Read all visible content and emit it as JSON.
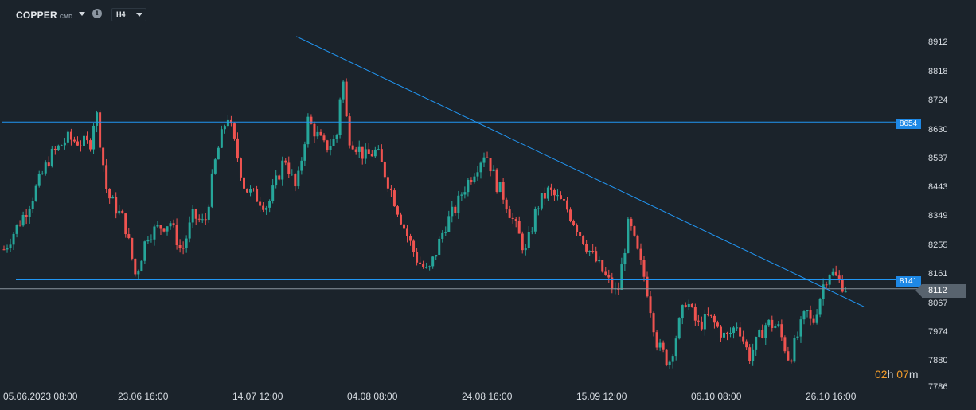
{
  "toolbar": {
    "symbol": "COPPER",
    "symbol_type": "CMD",
    "info_glyph": "i",
    "timeframe": "H4"
  },
  "price_axis": {
    "ticks": [
      "8912",
      "8818",
      "8724",
      "8630",
      "8537",
      "8443",
      "8349",
      "8255",
      "8161",
      "8067",
      "7974",
      "7880",
      "7786"
    ]
  },
  "time_axis": {
    "ticks": [
      "05.06.2023  08:00",
      "23.06  16:00",
      "14.07  12:00",
      "04.08  08:00",
      "24.08  16:00",
      "15.09  12:00",
      "06.10  08:00",
      "26.10  16:00"
    ]
  },
  "levels": {
    "resistance_label": "8654",
    "support_label": "8141",
    "current_price_label": "8112"
  },
  "timer": {
    "hours": "02",
    "hours_unit": "h",
    "minutes": "07",
    "minutes_unit": "m"
  },
  "colors": {
    "background": "#1b232b",
    "up_candle": "#26a69a",
    "down_candle": "#ef5350",
    "line": "#2196f3",
    "level_tag": "#1e88e5",
    "price_tag": "#58636e",
    "timer_accent": "#f39c2a"
  },
  "chart_data": {
    "type": "candlestick",
    "symbol": "COPPER",
    "timeframe": "H4",
    "y_ticks": [
      8912,
      8818,
      8724,
      8630,
      8537,
      8443,
      8349,
      8255,
      8161,
      8067,
      7974,
      7880,
      7786
    ],
    "ylim": [
      7786,
      8912
    ],
    "x_ticks": [
      "05.06.2023 08:00",
      "23.06 16:00",
      "14.07 12:00",
      "04.08 08:00",
      "24.08 16:00",
      "15.09 12:00",
      "06.10 08:00",
      "26.10 16:00"
    ],
    "horizontal_levels": [
      {
        "value": 8654,
        "label": "8654"
      },
      {
        "value": 8141,
        "label": "8141"
      }
    ],
    "current_price": 8112,
    "trendline": {
      "start": {
        "date": "26.07",
        "price": 8932
      },
      "end": {
        "date": "02.11",
        "price": 8054
      }
    },
    "anchors": [
      {
        "x": "05.06.2023 08:00",
        "close": 8240
      },
      {
        "x": "09.06",
        "close": 8370
      },
      {
        "x": "13.06",
        "close": 8540
      },
      {
        "x": "16.06",
        "close": 8600
      },
      {
        "x": "20.06",
        "close": 8580
      },
      {
        "x": "21.06",
        "close": 8700
      },
      {
        "x": "23.06 16:00",
        "close": 8420
      },
      {
        "x": "26.06",
        "close": 8330
      },
      {
        "x": "28.06",
        "close": 8150
      },
      {
        "x": "30.06",
        "close": 8290
      },
      {
        "x": "04.07",
        "close": 8330
      },
      {
        "x": "06.07",
        "close": 8230
      },
      {
        "x": "08.07",
        "close": 8350
      },
      {
        "x": "10.07",
        "close": 8320
      },
      {
        "x": "12.07",
        "close": 8540
      },
      {
        "x": "14.07 12:00",
        "close": 8680
      },
      {
        "x": "17.07",
        "close": 8440
      },
      {
        "x": "19.07",
        "close": 8410
      },
      {
        "x": "21.07",
        "close": 8380
      },
      {
        "x": "24.07",
        "close": 8540
      },
      {
        "x": "26.07",
        "close": 8430
      },
      {
        "x": "28.07",
        "close": 8660
      },
      {
        "x": "31.07",
        "close": 8570
      },
      {
        "x": "02.08",
        "close": 8600
      },
      {
        "x": "03.08",
        "close": 8820
      },
      {
        "x": "04.08 08:00",
        "close": 8610
      },
      {
        "x": "07.08",
        "close": 8540
      },
      {
        "x": "09.08",
        "close": 8560
      },
      {
        "x": "11.08",
        "close": 8460
      },
      {
        "x": "14.08",
        "close": 8300
      },
      {
        "x": "16.08",
        "close": 8210
      },
      {
        "x": "18.08",
        "close": 8160
      },
      {
        "x": "21.08",
        "close": 8320
      },
      {
        "x": "23.08",
        "close": 8380
      },
      {
        "x": "24.08 16:00",
        "close": 8430
      },
      {
        "x": "28.08",
        "close": 8560
      },
      {
        "x": "30.08",
        "close": 8450
      },
      {
        "x": "31.08",
        "close": 8420
      },
      {
        "x": "04.09",
        "close": 8230
      },
      {
        "x": "06.09",
        "close": 8380
      },
      {
        "x": "08.09",
        "close": 8430
      },
      {
        "x": "11.09",
        "close": 8380
      },
      {
        "x": "13.09",
        "close": 8310
      },
      {
        "x": "15.09 12:00",
        "close": 8240
      },
      {
        "x": "18.09",
        "close": 8150
      },
      {
        "x": "20.09",
        "close": 8090
      },
      {
        "x": "22.09",
        "close": 8330
      },
      {
        "x": "25.09",
        "close": 8130
      },
      {
        "x": "27.09",
        "close": 7930
      },
      {
        "x": "29.09",
        "close": 7870
      },
      {
        "x": "02.10",
        "close": 8080
      },
      {
        "x": "04.10",
        "close": 7990
      },
      {
        "x": "06.10 08:00",
        "close": 8020
      },
      {
        "x": "09.10",
        "close": 7950
      },
      {
        "x": "11.10",
        "close": 8000
      },
      {
        "x": "13.10",
        "close": 7890
      },
      {
        "x": "16.10",
        "close": 8000
      },
      {
        "x": "18.10",
        "close": 7990
      },
      {
        "x": "20.10",
        "close": 7880
      },
      {
        "x": "23.10",
        "close": 8040
      },
      {
        "x": "24.10",
        "close": 7990
      },
      {
        "x": "26.10 16:00",
        "close": 8130
      },
      {
        "x": "27.10",
        "close": 8170
      },
      {
        "x": "30.10",
        "close": 8112
      }
    ]
  }
}
